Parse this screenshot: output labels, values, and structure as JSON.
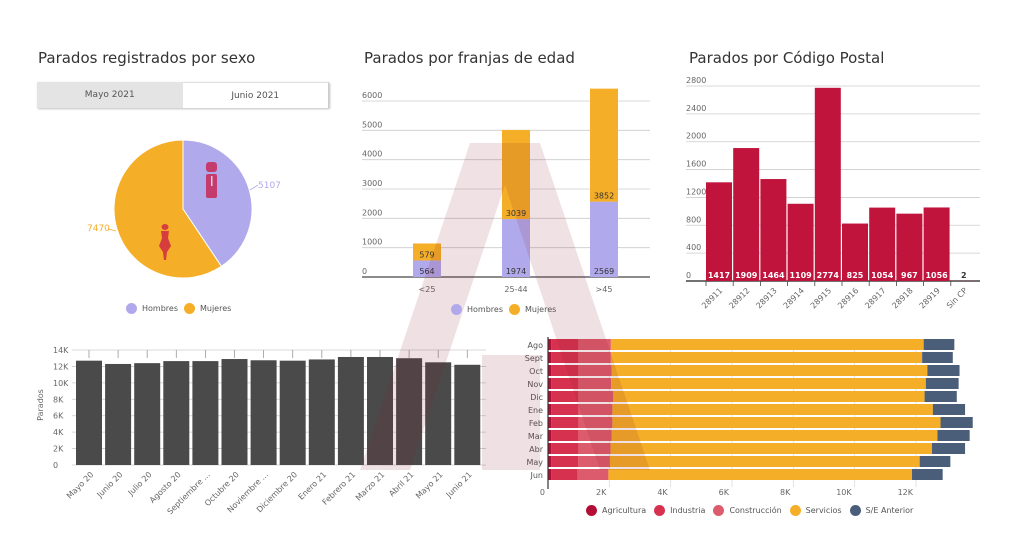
{
  "titles": {
    "sex": "Parados registrados por sexo",
    "age": "Parados por franjas de edad",
    "cp": "Parados por Código Postal"
  },
  "tabs": [
    {
      "label": "Mayo 2021",
      "active": false
    },
    {
      "label": "Junio 2021",
      "active": true
    }
  ],
  "colors": {
    "hombres": "#b0a9ec",
    "mujeres": "#f5ae27",
    "cp_bar": "#c0143c",
    "monthly_bar": "#4a4a4a",
    "agricultura": "#b30d35",
    "industria": "#d6324f",
    "construccion": "#dc5b6d",
    "servicios": "#f5ae27",
    "se_anterior": "#4a5e7a"
  },
  "chart_data": [
    {
      "id": "sex",
      "type": "pie",
      "title": "Parados registrados por sexo",
      "labels": [
        "Hombres",
        "Mujeres"
      ],
      "values": [
        5107,
        7470
      ],
      "legend": "bottom"
    },
    {
      "id": "age",
      "type": "bar",
      "stacked": true,
      "title": "Parados por franjas de edad",
      "categories": [
        "<25",
        "25-44",
        ">45"
      ],
      "series": [
        {
          "name": "Hombres",
          "values": [
            564,
            1974,
            2569
          ]
        },
        {
          "name": "Mujeres",
          "values": [
            579,
            3039,
            3852
          ]
        }
      ],
      "yticks": [
        "0",
        "1000",
        "2000",
        "3000",
        "4000",
        "5000",
        "6000"
      ],
      "ylim": [
        0,
        6000
      ],
      "legend": "bottom",
      "grid": true
    },
    {
      "id": "cp",
      "type": "bar",
      "title": "Parados por Código Postal",
      "categories": [
        "28911",
        "28912",
        "28913",
        "28914",
        "28915",
        "28916",
        "28917",
        "28918",
        "28919",
        "Sin CP"
      ],
      "values": [
        1417,
        1909,
        1464,
        1109,
        2774,
        825,
        1054,
        967,
        1056,
        2
      ],
      "yticks": [
        "0",
        "400",
        "800",
        "1200",
        "1600",
        "2000",
        "2400",
        "2800"
      ],
      "ylim": [
        0,
        2800
      ],
      "grid": true
    },
    {
      "id": "monthly",
      "type": "bar",
      "title": "",
      "ylabel": "Parados",
      "categories": [
        "Mayo 20",
        "Junio 20",
        "Julio 20",
        "Agosto 20",
        "Septiembre ...",
        "Octubre 20",
        "Noviembre ...",
        "Diciembre 20",
        "Enero 21",
        "Febrero 21",
        "Marzo 21",
        "Abril 21",
        "Mayo 21",
        "Junio 21"
      ],
      "values": [
        12700,
        12300,
        12400,
        12650,
        12650,
        12900,
        12750,
        12700,
        12850,
        13150,
        13150,
        13000,
        12500,
        12200
      ],
      "yticks": [
        "0",
        "2K",
        "4K",
        "6K",
        "8K",
        "10K",
        "12K",
        "14K"
      ],
      "ylim": [
        0,
        14000
      ],
      "grid": true
    },
    {
      "id": "sector",
      "type": "bar",
      "orientation": "horizontal",
      "stacked": true,
      "categories": [
        "Ago",
        "Sept",
        "Oct",
        "Nov",
        "Dic",
        "Ene",
        "Feb",
        "Mar",
        "Abr",
        "May",
        "Jun"
      ],
      "series": [
        {
          "name": "Agricultura",
          "values": [
            100,
            100,
            100,
            100,
            100,
            100,
            100,
            100,
            100,
            100,
            100
          ]
        },
        {
          "name": "Industria",
          "values": [
            900,
            900,
            900,
            900,
            900,
            900,
            900,
            900,
            900,
            880,
            860
          ]
        },
        {
          "name": "Construcción",
          "values": [
            1050,
            1050,
            1070,
            1060,
            1130,
            1100,
            1100,
            1080,
            1040,
            1040,
            1010
          ]
        },
        {
          "name": "Servicios",
          "values": [
            10200,
            10150,
            10300,
            10260,
            10150,
            10450,
            10700,
            10620,
            10480,
            10100,
            9900
          ]
        },
        {
          "name": "S/E Anterior",
          "values": [
            1000,
            1000,
            1050,
            1070,
            1050,
            1050,
            1050,
            1050,
            1080,
            1000,
            1000
          ]
        }
      ],
      "xticks": [
        "0",
        "2K",
        "4K",
        "6K",
        "8K",
        "10K",
        "12K"
      ],
      "xlim": [
        0,
        14000
      ],
      "legend": "bottom"
    }
  ],
  "legends": {
    "sex": [
      "Hombres",
      "Mujeres"
    ],
    "age": [
      "Hombres",
      "Mujeres"
    ],
    "sector": [
      "Agricultura",
      "Industria",
      "Construcción",
      "Servicios",
      "S/E Anterior"
    ]
  },
  "icons": {
    "male": "male-figure-icon",
    "female": "female-figure-icon"
  }
}
